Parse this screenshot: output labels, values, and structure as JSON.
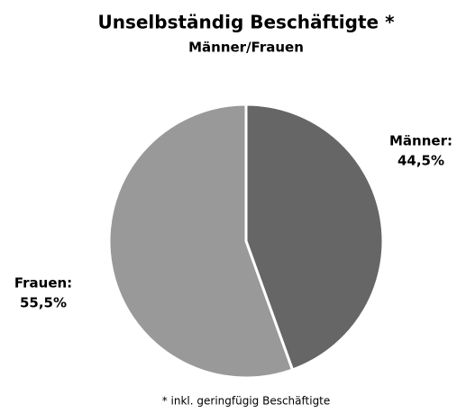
{
  "chart_data": {
    "type": "pie",
    "title": "Unselbständig Beschäftigte *",
    "subtitle": "Männer/Frauen",
    "categories": [
      "Männer:",
      "Frauen:"
    ],
    "values": [
      44.5,
      55.5
    ],
    "value_labels": [
      "44,5%",
      "55,5%"
    ],
    "colors": [
      "#666666",
      "#999999"
    ],
    "annotation": "* inkl. geringfügig Beschäftigte"
  }
}
